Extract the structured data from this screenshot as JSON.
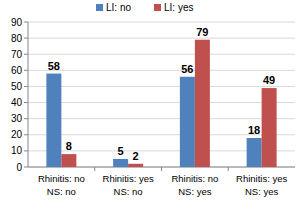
{
  "chart_data": {
    "type": "bar",
    "categories": [
      "Rhinitis: no\nNS: no",
      "Rhinitis: yes\nNS: no",
      "Rhinitis: no\nNS: yes",
      "Rhinitis: yes\nNS: yes"
    ],
    "series": [
      {
        "name": "LI: no",
        "color": "#4f81bd",
        "values": [
          58,
          5,
          56,
          18
        ]
      },
      {
        "name": "LI: yes",
        "color": "#c0504d",
        "values": [
          8,
          2,
          79,
          49
        ]
      }
    ],
    "ylim": [
      0,
      90
    ],
    "yticks": [
      0,
      10,
      20,
      30,
      40,
      50,
      60,
      70,
      80,
      90
    ],
    "grid": true,
    "legend": "top",
    "data_labels": true
  }
}
